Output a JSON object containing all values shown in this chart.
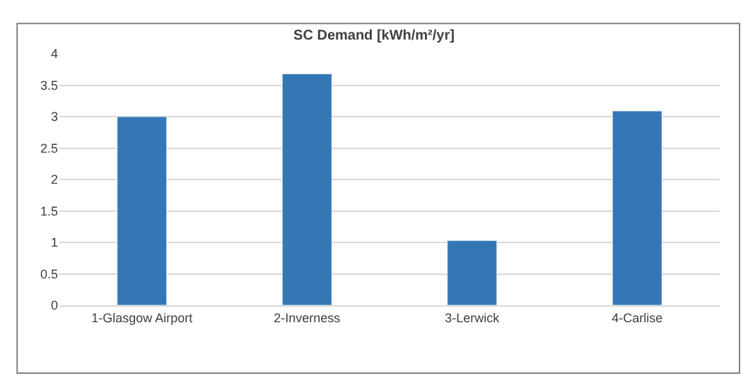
{
  "chart_data": {
    "type": "bar",
    "title": "SC Demand [kWh/m²/yr]",
    "categories": [
      "1-Glasgow Airport",
      "2-Inverness",
      "3-Lerwick",
      "4-Carlise"
    ],
    "values": [
      3.0,
      3.68,
      1.03,
      3.09
    ],
    "color": "#3577b5",
    "ylim": [
      0,
      4
    ],
    "yticks": [
      0,
      0.5,
      1,
      1.5,
      2,
      2.5,
      3,
      3.5,
      4
    ],
    "grid": "y",
    "legend": false
  }
}
